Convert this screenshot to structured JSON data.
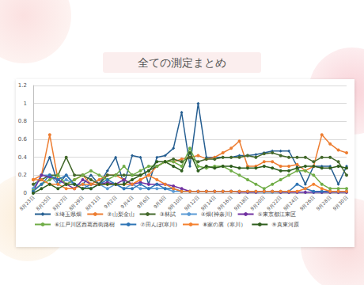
{
  "chart_data": {
    "type": "line",
    "title": "全ての測定まとめ",
    "categories": [
      "8月23日",
      null,
      "8月25日",
      null,
      "8月27日",
      null,
      "8月29日",
      null,
      "8月31日",
      null,
      "9月2日",
      null,
      "9月4日",
      null,
      "9月6日",
      null,
      "9月8日",
      null,
      "9月10日",
      null,
      "9月12日",
      null,
      "9月14日",
      null,
      "9月16日",
      null,
      "9月18日",
      null,
      "9月20日",
      null,
      "9月22日",
      null,
      "9月24日",
      null,
      "9月26日",
      null,
      "9月28日",
      null,
      "9月30日"
    ],
    "ylim": [
      0,
      1.2
    ],
    "yticks": [
      0,
      0.2,
      0.4,
      0.6,
      0.8,
      1,
      1.2
    ],
    "grid": true,
    "legend": "bottom",
    "series": [
      {
        "name": "①埼玉県畑",
        "color": "#255e91",
        "marker": "diamond",
        "line_style": "solid",
        "values": [
          0.05,
          0.2,
          0.4,
          0.1,
          0.2,
          0.1,
          0.1,
          0.2,
          0.1,
          0.25,
          0.4,
          0.1,
          0.42,
          0.4,
          0.1,
          0.4,
          0.42,
          0.5,
          0.9,
          0.3,
          1.0,
          0.4,
          0.4,
          0.4,
          0.4,
          0.42,
          0.42,
          0.43,
          0.45,
          0.47,
          0.47,
          0.47,
          0.3,
          0.1,
          0.3,
          0.3,
          0.3,
          0.1,
          0.3
        ]
      },
      {
        "name": "②山梨金山",
        "color": "#ed7d31",
        "marker": "circle",
        "line_style": "solid",
        "values": [
          0.15,
          0.2,
          0.65,
          0.15,
          0.1,
          0.15,
          0.2,
          0.1,
          0.15,
          0.2,
          0.2,
          0.15,
          0.1,
          0.15,
          0.2,
          0.3,
          0.35,
          0.35,
          0.38,
          0.4,
          0.42,
          0.38,
          0.4,
          0.45,
          0.5,
          0.58,
          0.3,
          0.3,
          0.35,
          0.35,
          0.3,
          0.3,
          0.32,
          0.25,
          0.3,
          0.65,
          0.55,
          0.48,
          0.45
        ]
      },
      {
        "name": "③林試",
        "color": "#43682b",
        "marker": "circle",
        "line_style": "solid",
        "values": [
          0.1,
          0.15,
          0.2,
          0.2,
          0.4,
          0.2,
          0.2,
          0.15,
          0.1,
          0.2,
          0.2,
          0.2,
          0.2,
          0.2,
          0.25,
          0.3,
          0.35,
          0.38,
          0.35,
          0.4,
          0.35,
          0.38,
          0.38,
          0.4,
          0.4,
          0.4,
          0.42,
          0.4,
          0.44,
          0.45,
          0.42,
          0.4,
          0.4,
          0.4,
          0.35,
          0.4,
          0.4,
          0.35,
          0.2
        ]
      },
      {
        "name": "④畑(神奈川)",
        "color": "#5b9bd5",
        "marker": "circle",
        "line_style": "solid",
        "values": [
          0.05,
          0.2,
          0.2,
          0.1,
          0.15,
          0.1,
          0.1,
          0.05,
          0.1,
          0.05,
          0.1,
          0.05,
          0.1,
          0.05,
          0.05,
          0.05,
          0.05,
          0.02,
          0.02,
          0.02,
          0.02,
          0.02,
          0.02,
          0.02,
          0.02,
          0.02,
          0.01,
          0.01,
          0.01,
          0.01,
          0.01,
          0.01,
          0.01,
          0.01,
          0.01,
          0.01,
          0.01,
          0.01,
          0.01
        ]
      },
      {
        "name": "⑤東京都江東区",
        "color": "#7030a0",
        "marker": "circle",
        "line_style": "solid",
        "values": [
          0.02,
          0.2,
          0.18,
          0.15,
          0.1,
          0.05,
          0.15,
          0.1,
          0.1,
          0.12,
          0.1,
          0.15,
          0.1,
          0.12,
          0.1,
          0.1,
          0.1,
          0.08,
          0.05,
          0.02,
          0.02,
          0.02,
          0.02,
          0.02,
          0.02,
          0.01,
          0.01,
          0.01,
          0.02,
          0.02,
          0.01,
          0.01,
          0.01,
          0.01,
          0.01,
          0.01,
          0.01,
          0.01,
          0.01
        ]
      },
      {
        "name": "⑥江戸川区西葛西街路樹",
        "color": "#70ad47",
        "marker": "circle",
        "line_style": "solid",
        "values": [
          0.03,
          0.1,
          0.15,
          0.2,
          0.1,
          0.15,
          0.2,
          0.25,
          0.2,
          0.15,
          0.2,
          0.3,
          0.2,
          0.25,
          0.3,
          0.3,
          0.35,
          0.35,
          0.3,
          0.5,
          0.3,
          0.28,
          0.3,
          0.3,
          0.25,
          0.2,
          0.15,
          0.1,
          0.05,
          0.1,
          0.15,
          0.2,
          0.25,
          0.25,
          0.2,
          0.1,
          0.05,
          0.05,
          0.05
        ]
      },
      {
        "name": "⑦田んぼ(寒川)",
        "color": "#2e75b6",
        "marker": "circle",
        "line_style": "solid",
        "values": [
          0.02,
          0.1,
          0.2,
          0.15,
          0.2,
          0.1,
          0.05,
          0.1,
          0.1,
          0.15,
          0.1,
          0.05,
          0.05,
          0.1,
          0.05,
          0.1,
          0.05,
          0.05,
          0.02,
          0.02,
          0.02,
          0.02,
          0.02,
          0.02,
          0.02,
          0.02,
          0.02,
          0.02,
          0.02,
          0.02,
          0.02,
          0.02,
          0.1,
          0.05,
          0.02,
          0.02,
          0.02,
          0.02,
          0.02
        ]
      },
      {
        "name": "⑧家の裏（寒川）",
        "color": "#f4812f",
        "marker": "circle",
        "line_style": "solid",
        "values": [
          0.15,
          0.15,
          0.1,
          0.1,
          0.05,
          0.05,
          0.1,
          0.1,
          0.1,
          0.1,
          0.1,
          0.1,
          0.1,
          0.15,
          0.2,
          0.15,
          0.1,
          0.05,
          0.02,
          0.02,
          0.02,
          0.02,
          0.02,
          0.02,
          0.02,
          0.02,
          0.02,
          0.02,
          0.02,
          0.02,
          0.02,
          0.02,
          0.02,
          0.05,
          0.1,
          0.05,
          0.02,
          0.02,
          0.02
        ]
      },
      {
        "name": "⑨真東河原",
        "color": "#2f5e1e",
        "marker": "circle",
        "line_style": "solid",
        "values": [
          0,
          0.05,
          0.1,
          0.05,
          0.1,
          0.1,
          0.05,
          0.05,
          0.1,
          0.1,
          0.1,
          0.1,
          0.15,
          0.2,
          0.25,
          0.35,
          0.35,
          0.3,
          0.25,
          0.45,
          0.25,
          0.3,
          0.28,
          0.3,
          0.3,
          0.28,
          0.28,
          0.28,
          0.3,
          0.28,
          0.25,
          0.25,
          0.28,
          0.3,
          0.3,
          0.28,
          0.28,
          0.3,
          0.28
        ]
      }
    ]
  }
}
